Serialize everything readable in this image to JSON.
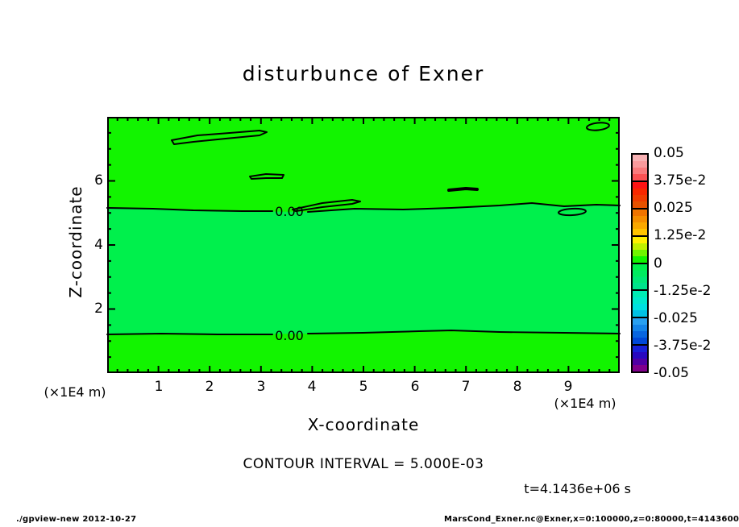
{
  "title": "disturbunce of Exner",
  "axis": {
    "x_label": "X-coordinate",
    "y_label": "Z-coordinate",
    "x_unit_left": "(×1E4 m)",
    "x_unit_right": "(×1E4 m)"
  },
  "annotations": {
    "contour_interval": "CONTOUR INTERVAL = 5.000E-03",
    "time": "t=4.1436e+06 s"
  },
  "contours": {
    "labels": [
      "0.00",
      "0.00"
    ]
  },
  "footer": {
    "left": "./gpview-new  2012-10-27",
    "right": "MarsCond_Exner.nc@Exner,x=0:100000,z=0:80000,t=4143600"
  },
  "colorbar": {
    "labels": [
      "0.05",
      "3.75e-2",
      "0.025",
      "1.25e-2",
      "0",
      "-1.25e-2",
      "-0.025",
      "-3.75e-2",
      "-0.05"
    ],
    "cells": [
      [
        "#f8b2b4",
        "#f99a9c",
        "#fa7a7c",
        "#fb5254"
      ],
      [
        "#ff1414",
        "#f82800",
        "#f03c00",
        "#e85200"
      ],
      [
        "#f07400",
        "#f58e00",
        "#faa800",
        "#ffc400"
      ],
      [
        "#fff000",
        "#c0f000",
        "#70f400",
        "#12f400"
      ],
      [
        "#00f04c",
        "#00ec60",
        "#00e878",
        "#00e48c"
      ],
      [
        "#00ecb4",
        "#00e8cc",
        "#00e0e0",
        "#00c0e4"
      ],
      [
        "#28a0f0",
        "#1484e8",
        "#0866e0",
        "#0048d8"
      ],
      [
        "#1820d8",
        "#2808c0",
        "#5000a4",
        "#80008c"
      ]
    ]
  },
  "chart_data": {
    "type": "heatmap",
    "subtype": "filled contour plot with contour lines",
    "title": "disturbunce of Exner",
    "xlabel": "X-coordinate (×1E4 m)",
    "ylabel": "Z-coordinate (×1E4 m)",
    "xlim": [
      0,
      10
    ],
    "ylim": [
      0,
      8
    ],
    "x_tick_labels": [
      "1",
      "2",
      "3",
      "4",
      "5",
      "6",
      "7",
      "8",
      "9"
    ],
    "y_tick_labels": [
      "6",
      "4",
      "2"
    ],
    "x_minor_step": 0.2,
    "x_major_step": 1,
    "y_minor_step": 0.5,
    "y_major_step": 2,
    "contour_interval": 0.005,
    "colorbar_range": [
      -0.05,
      0.05
    ],
    "colorbar_label_step": 0.0125,
    "time_seconds": 4143600,
    "tone": {
      "positive_color": "#12f400",
      "negative_color": "#00f04c"
    },
    "zero_contour_z_levels": [
      5.15,
      1.2
    ],
    "zero_contour_label": "0.00",
    "closed_contours": [
      {
        "x_range": [
          1.2,
          3.1
        ],
        "z_range": [
          7.15,
          7.55
        ]
      },
      {
        "x_range": [
          2.75,
          3.5
        ],
        "z_range": [
          6.05,
          6.15
        ]
      },
      {
        "x_range": [
          3.6,
          4.95
        ],
        "z_range": [
          5.2,
          5.45
        ]
      },
      {
        "x_range": [
          6.65,
          7.25
        ],
        "z_range": [
          5.65,
          5.75
        ]
      },
      {
        "x_range": [
          8.8,
          9.35
        ],
        "z_range": [
          4.95,
          5.1
        ]
      },
      {
        "x_range": [
          9.35,
          9.8
        ],
        "z_range": [
          7.6,
          7.8
        ]
      }
    ]
  }
}
